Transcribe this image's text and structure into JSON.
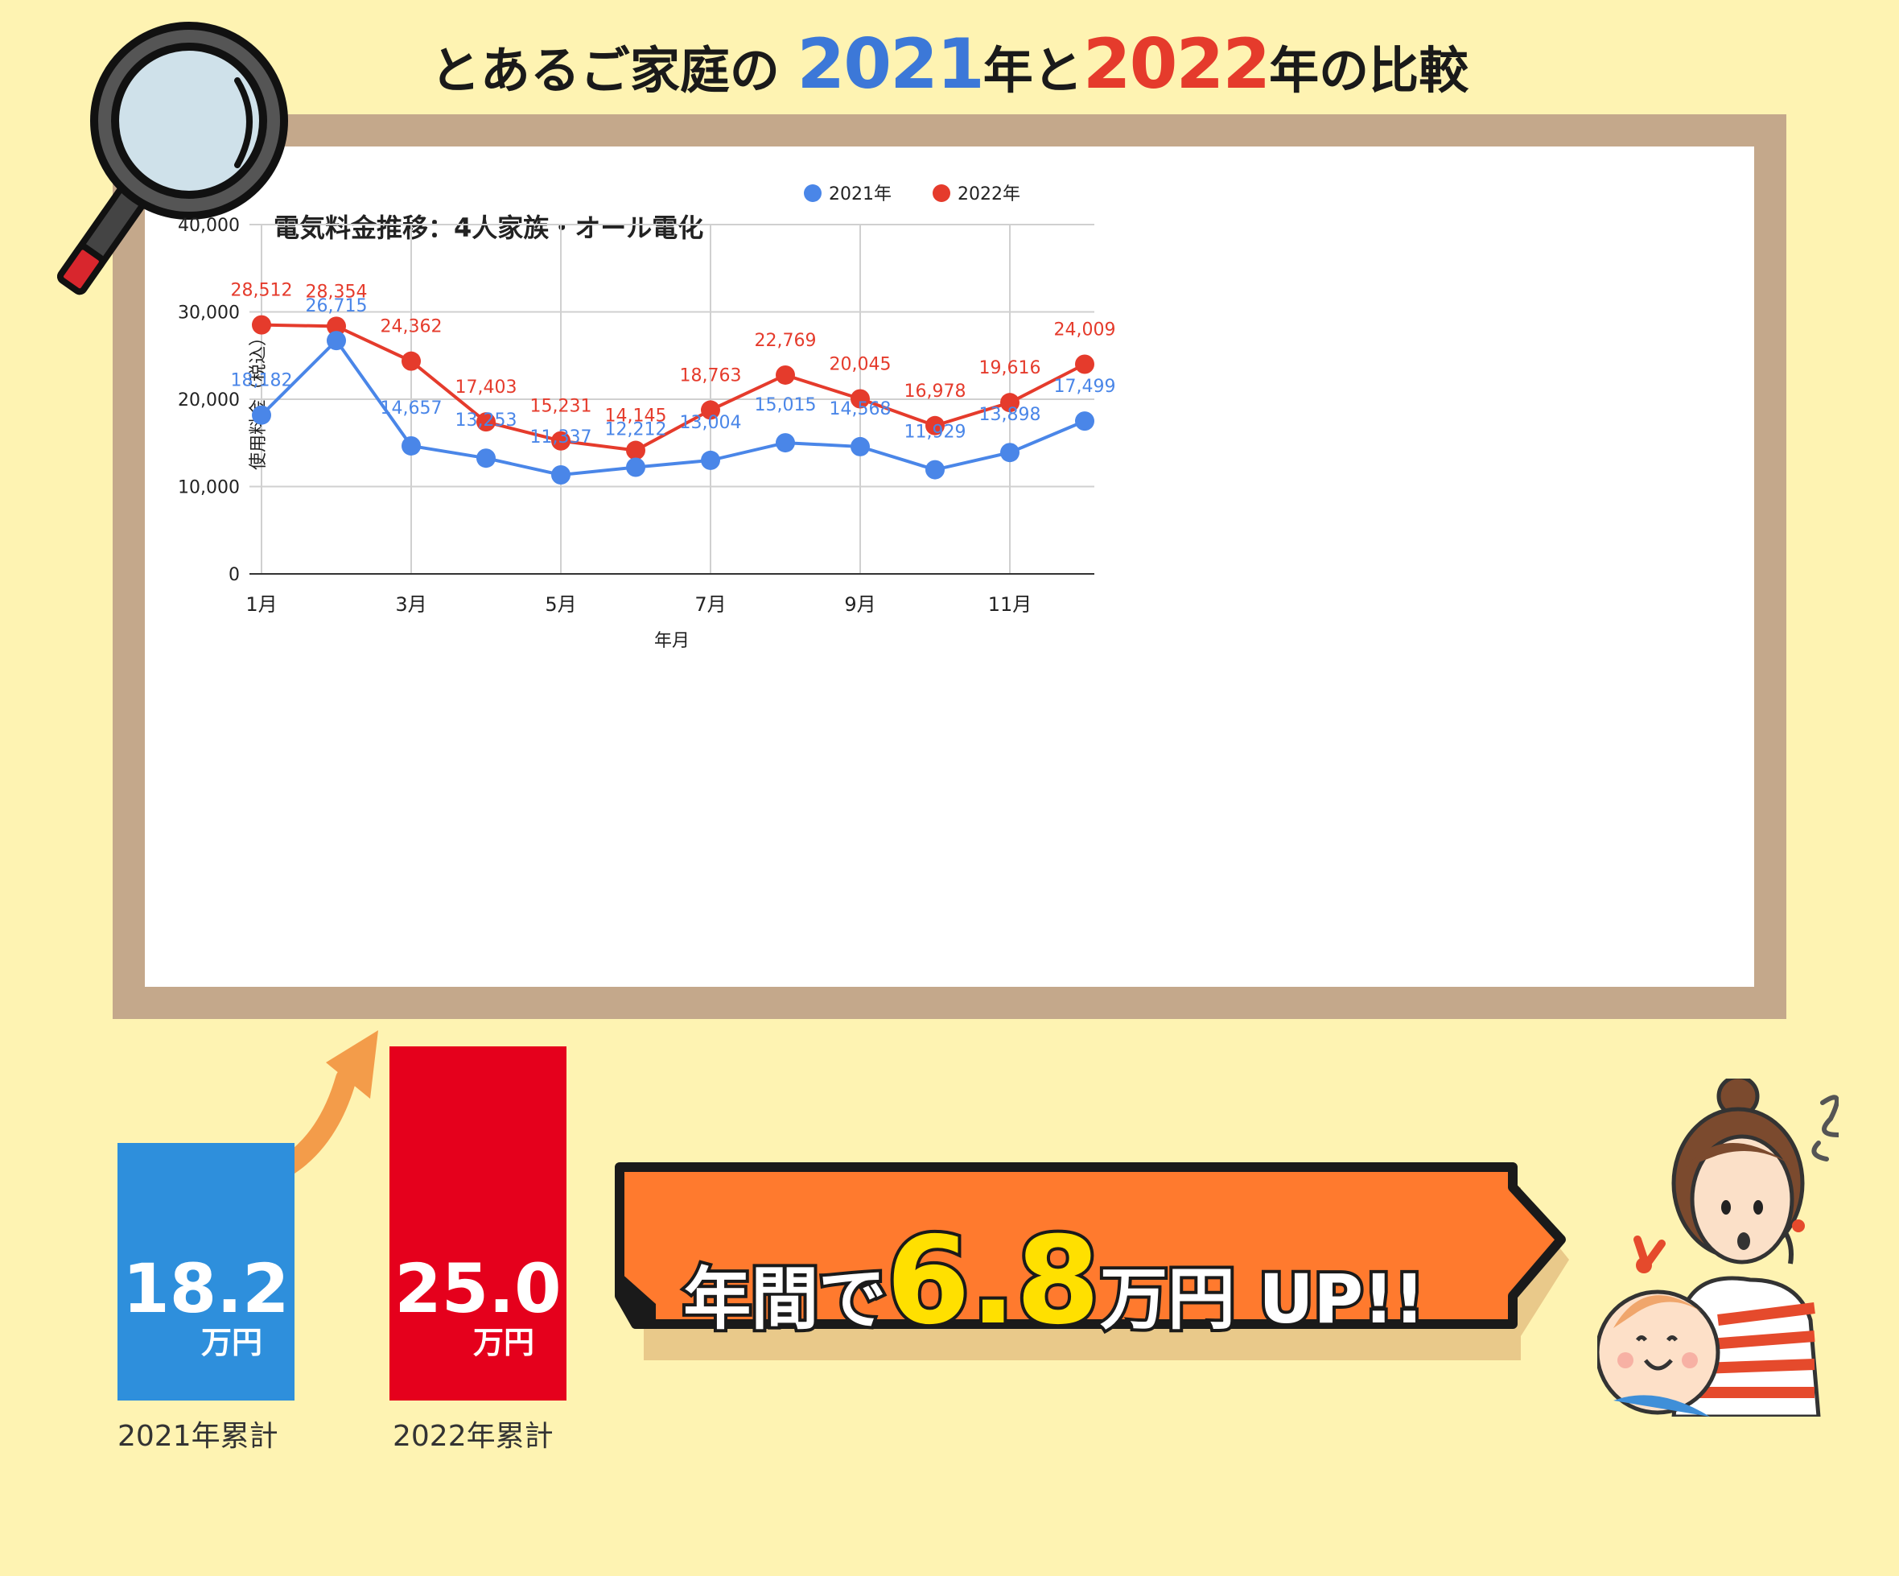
{
  "header": {
    "prefix": "とあるご家庭の",
    "year1": "2021",
    "mid": "年と",
    "year2": "2022",
    "suffix": "年の比較",
    "year1_color": "#3c78d8",
    "year2_color": "#e53b2c"
  },
  "chart_data": {
    "type": "line",
    "title": "電気料金推移：4人家族・オール電化",
    "xlabel": "年月",
    "ylabel": "使用料金（税込）",
    "ylim": [
      0,
      40000
    ],
    "yticks": [
      "0",
      "10,000",
      "20,000",
      "30,000",
      "40,000"
    ],
    "categories": [
      "1月",
      "2月",
      "3月",
      "4月",
      "5月",
      "6月",
      "7月",
      "8月",
      "9月",
      "10月",
      "11月",
      "12月"
    ],
    "x_tick_labels": [
      "1月",
      "3月",
      "5月",
      "7月",
      "9月",
      "11月"
    ],
    "legend_position": "top",
    "grid": true,
    "series": [
      {
        "name": "2021年",
        "color": "#4a86e8",
        "values": [
          18182,
          26715,
          14657,
          13253,
          11337,
          12212,
          13004,
          15015,
          14568,
          11929,
          13898,
          17499
        ],
        "labels": [
          "18,182",
          "26,715",
          "14,657",
          "13,253",
          "11,337",
          "12,212",
          "13,004",
          "15,015",
          "14,568",
          "11,929",
          "13,898",
          "17,499"
        ]
      },
      {
        "name": "2022年",
        "color": "#e53b2c",
        "values": [
          28512,
          28354,
          24362,
          17403,
          15231,
          14145,
          18763,
          22769,
          20045,
          16978,
          19616,
          24009
        ],
        "labels": [
          "28,512",
          "28,354",
          "24,362",
          "17,403",
          "15,231",
          "14,145",
          "18,763",
          "22,769",
          "20,045",
          "16,978",
          "19,616",
          "24,009"
        ]
      }
    ]
  },
  "totals": {
    "bar2021": {
      "value": "18.2",
      "unit": "万円",
      "label": "2021年累計",
      "amount": 18.2,
      "color": "#2e8fdc"
    },
    "bar2022": {
      "value": "25.0",
      "unit": "万円",
      "label": "2022年累計",
      "amount": 25.0,
      "color": "#e5001c"
    }
  },
  "banner": {
    "prefix": "年間で",
    "amount": "6.8",
    "suffix": "万円 UP!!",
    "color": "#ff7a2e"
  }
}
